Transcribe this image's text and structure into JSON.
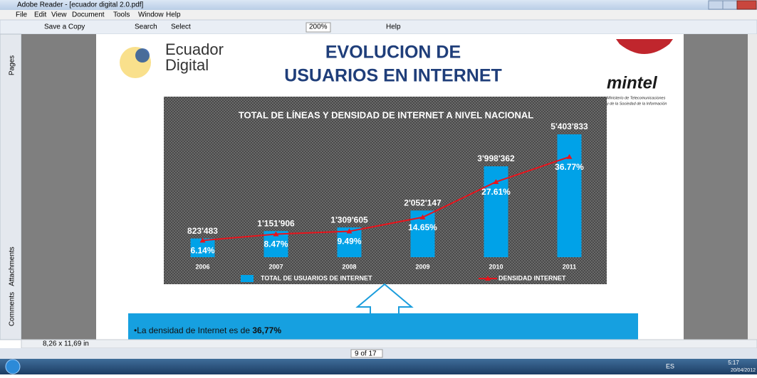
{
  "window": {
    "title": "Adobe Reader - [ecuador digital 2.0.pdf]",
    "menu": [
      "File",
      "Edit",
      "View",
      "Document",
      "Tools",
      "Window",
      "Help"
    ],
    "toolbar": {
      "save": "Save a Copy",
      "search": "Search",
      "select": "Select",
      "zoom": "200%",
      "help": "Help"
    },
    "side_tabs": [
      "Pages",
      "Attachments",
      "Comments"
    ],
    "page_size": "8,26 x 11,69 in",
    "page_nav": "9 of 17",
    "taskbar": {
      "lang": "ES",
      "time": "5:17",
      "date": "20/04/2012"
    }
  },
  "slide": {
    "logo_left": [
      "Ecuador",
      "Digital"
    ],
    "title": [
      "EVOLUCION DE",
      "USUARIOS EN INTERNET"
    ],
    "logo_right": "mintel",
    "ministry": [
      "Ministerio de Telecomunicaciones",
      "y de la Sociedad de la Información"
    ],
    "bullet": {
      "text": "•La densidad de Internet es de ",
      "bold": "36,77%"
    }
  },
  "chart_data": {
    "type": "bar",
    "title": "TOTAL DE LÍNEAS Y DENSIDAD DE INTERNET A NIVEL NACIONAL",
    "categories": [
      "2006",
      "2007",
      "2008",
      "2009",
      "2010",
      "2011"
    ],
    "series": [
      {
        "name": "TOTAL DE USUARIOS DE INTERNET",
        "type": "bar",
        "color": "#00a2e8",
        "values": [
          823483,
          1151906,
          1309605,
          2052147,
          3998362,
          5403833
        ],
        "value_labels": [
          "823'483",
          "1'151'906",
          "1'309'605",
          "2'052'147",
          "3'998'362",
          "5'403'833"
        ]
      },
      {
        "name": "DENSIDAD INTERNET",
        "type": "line",
        "axis": "y2",
        "color": "#e8141c",
        "values": [
          6.14,
          8.47,
          9.49,
          14.65,
          27.61,
          36.77
        ],
        "value_labels": [
          "6.14%",
          "8.47%",
          "9.49%",
          "14.65%",
          "27.61%",
          "36.77%"
        ]
      }
    ],
    "ylim": [
      0,
      6000000
    ],
    "y2lim": [
      0,
      50
    ]
  }
}
